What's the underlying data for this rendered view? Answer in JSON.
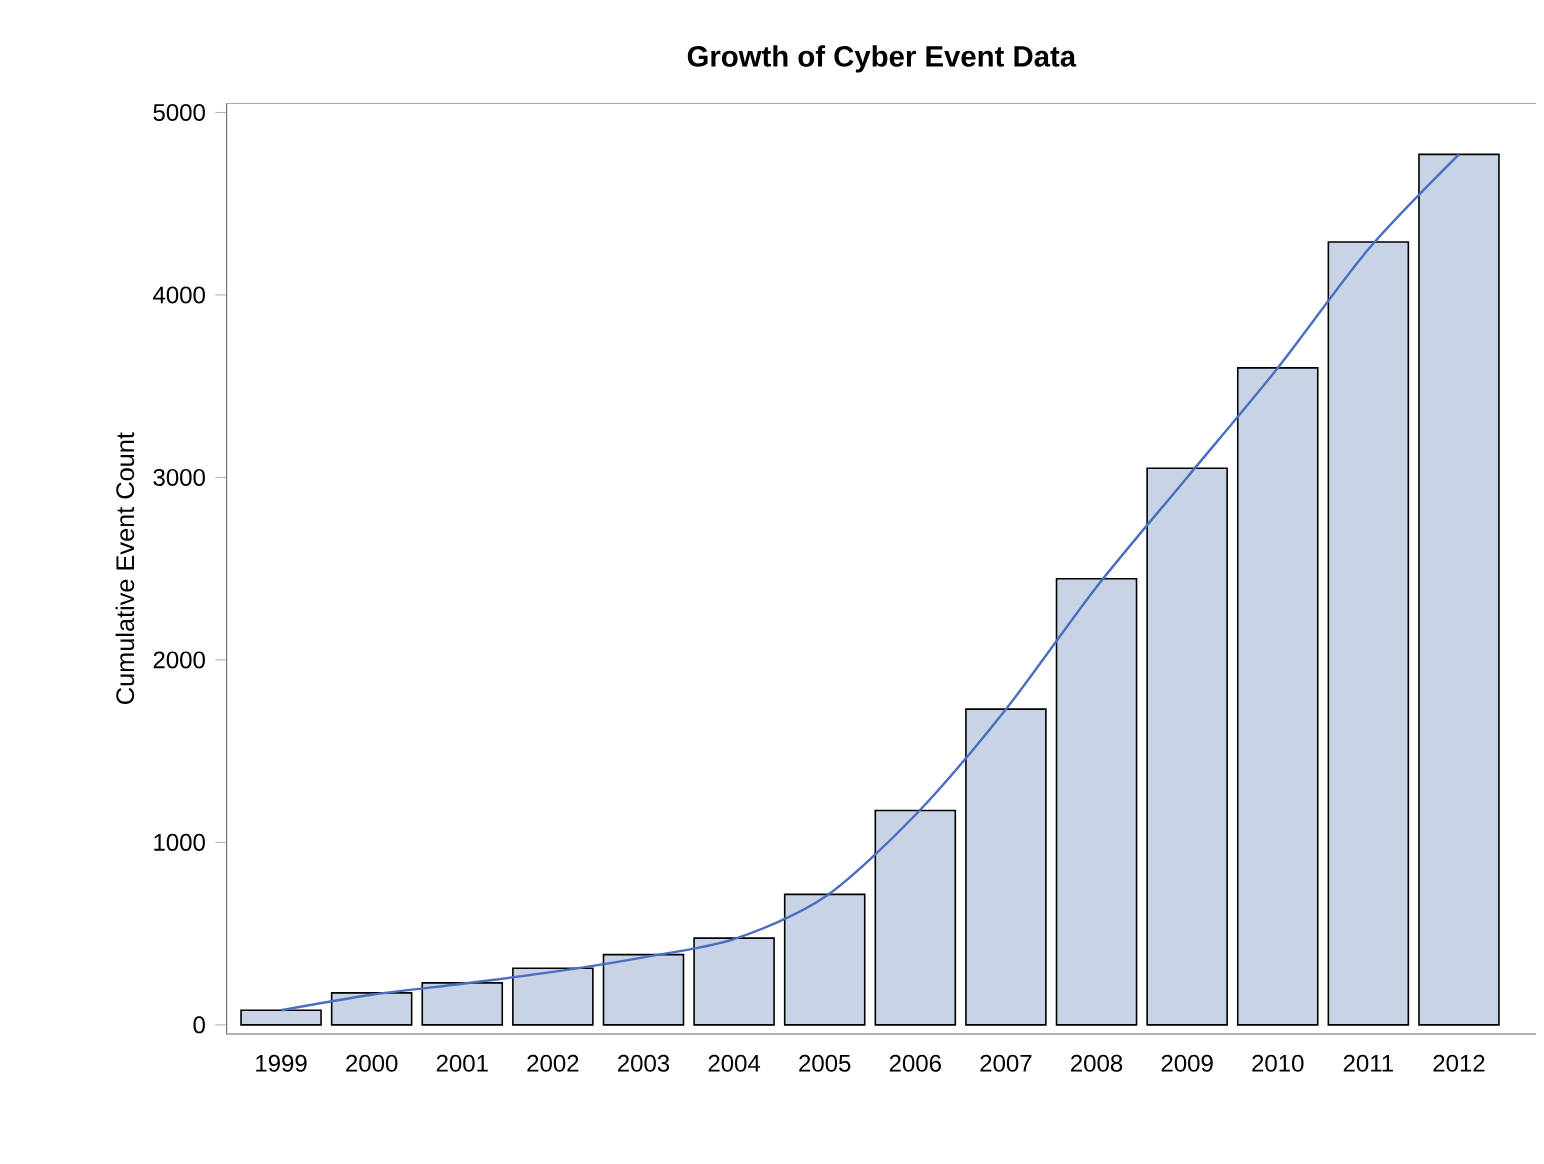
{
  "chart_data": {
    "type": "bar",
    "title": "Growth of Cyber Event Data",
    "ylabel": "Cumulative Event Count",
    "categories": [
      "1999",
      "2000",
      "2001",
      "2002",
      "2003",
      "2004",
      "2005",
      "2006",
      "2007",
      "2008",
      "2009",
      "2010",
      "2011",
      "2012"
    ],
    "series": [
      {
        "color": "#c8d4e6",
        "values": [
          80,
          175,
          230,
          310,
          385,
          475,
          715,
          1175,
          1730,
          2445,
          3050,
          3600,
          4290,
          4770
        ]
      },
      {
        "type": "line",
        "color": "#4a6fc0",
        "values": [
          80,
          165,
          225,
          290,
          370,
          470,
          700,
          1150,
          1730,
          2400,
          3000,
          3600,
          4250,
          4770
        ]
      }
    ],
    "ylim": [
      -50,
      5050
    ],
    "yticks": [
      0,
      1000,
      2000,
      3000,
      4000,
      5000
    ]
  }
}
